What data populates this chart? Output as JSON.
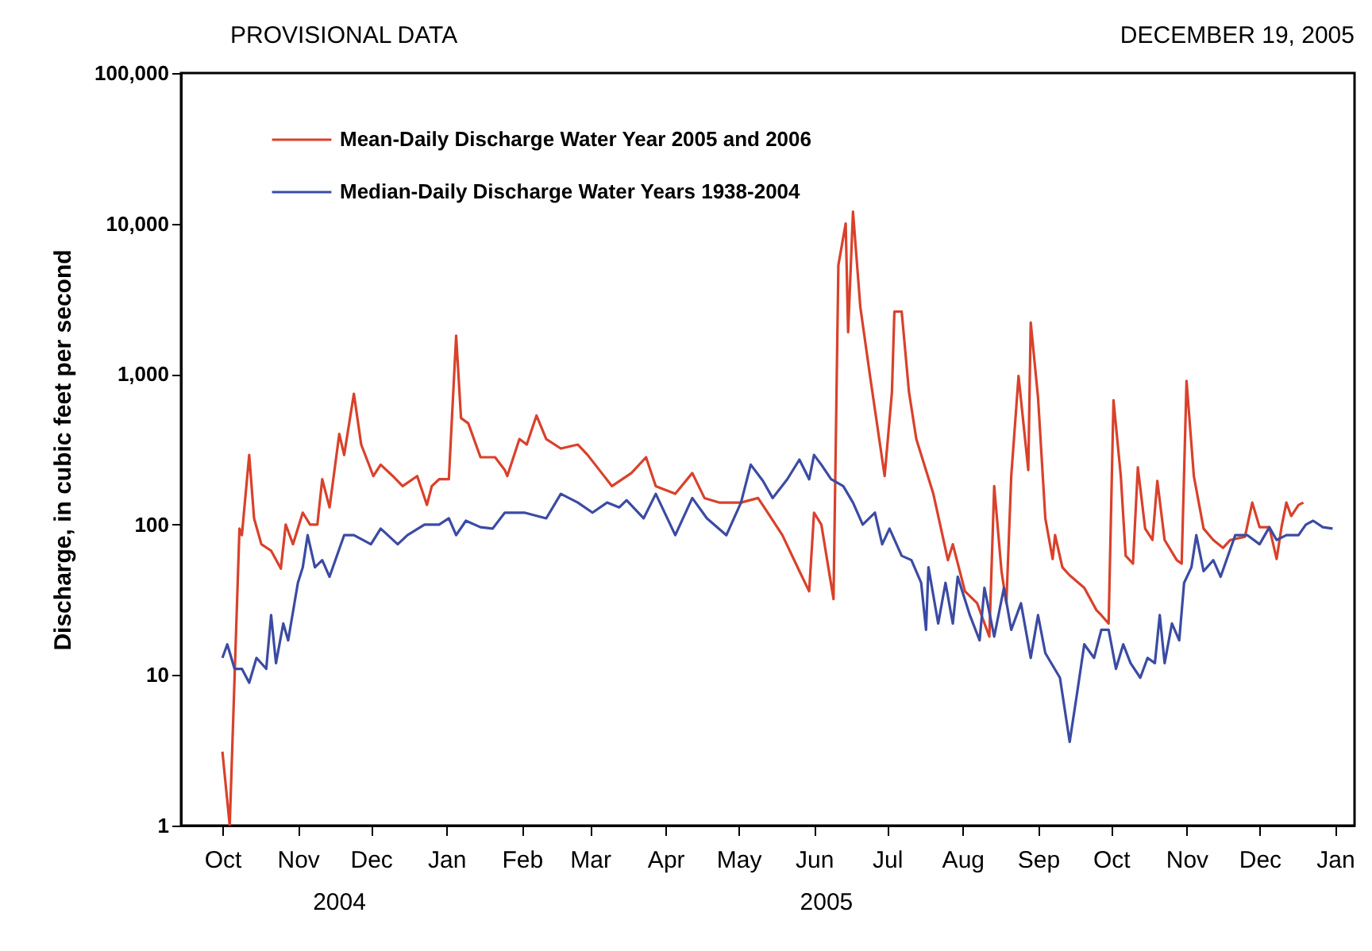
{
  "chart_data": {
    "type": "line",
    "title": "PROVISIONAL DATA",
    "ylabel": "Discharge, in cubic feet per second",
    "annotations": [
      "DECEMBER 19, 2005",
      "2004",
      "2005"
    ],
    "log": "y",
    "grid": false,
    "legend": "top left",
    "line_style": "solid",
    "marker": "none",
    "xlim": [
      "2004-09-14",
      "2006-01-09"
    ],
    "xticks": [
      {
        "value": "2004-10-01",
        "label": "Oct"
      },
      {
        "value": "2004-11-01",
        "label": "Nov"
      },
      {
        "value": "2004-12-01",
        "label": "Dec"
      },
      {
        "value": "2005-01-01",
        "label": "Jan"
      },
      {
        "value": "2005-02-01",
        "label": "Feb"
      },
      {
        "value": "2005-03-01",
        "label": "Mar"
      },
      {
        "value": "2005-04-01",
        "label": "Apr"
      },
      {
        "value": "2005-05-01",
        "label": "May"
      },
      {
        "value": "2005-06-01",
        "label": "Jun"
      },
      {
        "value": "2005-07-01",
        "label": "Jul"
      },
      {
        "value": "2005-08-01",
        "label": "Aug"
      },
      {
        "value": "2005-09-01",
        "label": "Sep"
      },
      {
        "value": "2005-10-01",
        "label": "Oct"
      },
      {
        "value": "2005-11-01",
        "label": "Nov"
      },
      {
        "value": "2005-12-01",
        "label": "Dec"
      },
      {
        "value": "2006-01-01",
        "label": "Jan"
      }
    ],
    "ylim": [
      1,
      100000
    ],
    "yticks": [
      1,
      10,
      100,
      {
        "value": 1000,
        "label": "1,000"
      },
      {
        "value": 10000,
        "label": "10,000"
      },
      {
        "value": 100000,
        "label": "100,000"
      }
    ],
    "series": [
      {
        "name": "Mean-Daily Discharge Water Year 2005 and 2006",
        "color": "#d9412b",
        "x": [
          "2004-10-01",
          "2004-10-04",
          "2004-10-08",
          "2004-10-09",
          "2004-10-12",
          "2004-10-14",
          "2004-10-17",
          "2004-10-21",
          "2004-10-25",
          "2004-10-27",
          "2004-10-30",
          "2004-11-03",
          "2004-11-06",
          "2004-11-09",
          "2004-11-11",
          "2004-11-14",
          "2004-11-18",
          "2004-11-20",
          "2004-11-24",
          "2004-11-27",
          "2004-12-02",
          "2004-12-05",
          "2004-12-10",
          "2004-12-14",
          "2004-12-20",
          "2004-12-24",
          "2004-12-26",
          "2004-12-29",
          "2005-01-02",
          "2005-01-05",
          "2005-01-07",
          "2005-01-10",
          "2005-01-15",
          "2005-01-21",
          "2005-01-25",
          "2005-01-26",
          "2005-01-31",
          "2005-02-03",
          "2005-02-07",
          "2005-02-11",
          "2005-02-17",
          "2005-02-24",
          "2005-02-28",
          "2005-03-10",
          "2005-03-18",
          "2005-03-24",
          "2005-03-28",
          "2005-04-05",
          "2005-04-12",
          "2005-04-17",
          "2005-04-23",
          "2005-05-02",
          "2005-05-09",
          "2005-05-13",
          "2005-05-19",
          "2005-05-26",
          "2005-05-30",
          "2005-06-01",
          "2005-06-04",
          "2005-06-09",
          "2005-06-11",
          "2005-06-14",
          "2005-06-15",
          "2005-06-17",
          "2005-06-20",
          "2005-06-24",
          "2005-06-30",
          "2005-07-03",
          "2005-07-04",
          "2005-07-07",
          "2005-07-10",
          "2005-07-13",
          "2005-07-20",
          "2005-07-26",
          "2005-07-28",
          "2005-08-02",
          "2005-08-07",
          "2005-08-12",
          "2005-08-14",
          "2005-08-17",
          "2005-08-19",
          "2005-08-21",
          "2005-08-24",
          "2005-08-28",
          "2005-08-29",
          "2005-09-01",
          "2005-09-04",
          "2005-09-07",
          "2005-09-08",
          "2005-09-11",
          "2005-09-14",
          "2005-09-20",
          "2005-09-25",
          "2005-09-27",
          "2005-09-30",
          "2005-10-02",
          "2005-10-05",
          "2005-10-07",
          "2005-10-10",
          "2005-10-12",
          "2005-10-15",
          "2005-10-18",
          "2005-10-20",
          "2005-10-23",
          "2005-10-28",
          "2005-10-30",
          "2005-11-01",
          "2005-11-04",
          "2005-11-08",
          "2005-11-12",
          "2005-11-16",
          "2005-11-19",
          "2005-11-25",
          "2005-11-28",
          "2005-12-01",
          "2005-12-05",
          "2005-12-08",
          "2005-12-10",
          "2005-12-12",
          "2005-12-14",
          "2005-12-17",
          "2005-12-19"
        ],
        "values": [
          3.1,
          1,
          94,
          85,
          290,
          110,
          74,
          67,
          51,
          100,
          74,
          120,
          100,
          100,
          200,
          130,
          400,
          290,
          740,
          340,
          210,
          250,
          210,
          180,
          210,
          135,
          180,
          200,
          200,
          1800,
          510,
          470,
          280,
          280,
          230,
          210,
          370,
          340,
          530,
          370,
          320,
          340,
          290,
          180,
          220,
          280,
          180,
          160,
          220,
          150,
          140,
          140,
          150,
          120,
          85,
          49,
          36,
          120,
          100,
          32,
          5300,
          10000,
          1900,
          12000,
          2800,
          970,
          210,
          760,
          2600,
          2600,
          760,
          370,
          160,
          58,
          74,
          36,
          30,
          18,
          180,
          49,
          30,
          210,
          970,
          230,
          2200,
          700,
          110,
          59,
          85,
          52,
          46,
          38,
          27,
          25,
          22,
          670,
          210,
          62,
          55,
          240,
          94,
          79,
          195,
          79,
          58,
          55,
          900,
          210,
          94,
          79,
          70,
          79,
          83,
          140,
          96,
          96,
          59,
          96,
          140,
          114,
          135,
          140
        ]
      },
      {
        "name": "Median-Daily Discharge Water Years 1938-2004",
        "color": "#3b4ba3",
        "x": [
          "2004-10-01",
          "2004-10-03",
          "2004-10-06",
          "2004-10-09",
          "2004-10-12",
          "2004-10-15",
          "2004-10-19",
          "2004-10-21",
          "2004-10-23",
          "2004-10-26",
          "2004-10-28",
          "2004-11-01",
          "2004-11-03",
          "2004-11-05",
          "2004-11-08",
          "2004-11-11",
          "2004-11-14",
          "2004-11-17",
          "2004-11-20",
          "2004-11-24",
          "2004-12-01",
          "2004-12-05",
          "2004-12-12",
          "2004-12-16",
          "2004-12-23",
          "2004-12-29",
          "2005-01-02",
          "2005-01-05",
          "2005-01-09",
          "2005-01-15",
          "2005-01-20",
          "2005-01-25",
          "2005-02-02",
          "2005-02-11",
          "2005-02-17",
          "2005-02-24",
          "2005-03-02",
          "2005-03-08",
          "2005-03-13",
          "2005-03-16",
          "2005-03-23",
          "2005-03-28",
          "2005-04-05",
          "2005-04-12",
          "2005-04-18",
          "2005-04-26",
          "2005-05-02",
          "2005-05-06",
          "2005-05-11",
          "2005-05-15",
          "2005-05-21",
          "2005-05-26",
          "2005-05-30",
          "2005-06-01",
          "2005-06-04",
          "2005-06-08",
          "2005-06-13",
          "2005-06-17",
          "2005-06-21",
          "2005-06-26",
          "2005-06-29",
          "2005-07-02",
          "2005-07-07",
          "2005-07-11",
          "2005-07-15",
          "2005-07-17",
          "2005-07-18",
          "2005-07-22",
          "2005-07-25",
          "2005-07-28",
          "2005-07-30",
          "2005-08-04",
          "2005-08-08",
          "2005-08-10",
          "2005-08-14",
          "2005-08-18",
          "2005-08-21",
          "2005-08-25",
          "2005-08-29",
          "2005-09-01",
          "2005-09-04",
          "2005-09-10",
          "2005-09-14",
          "2005-09-17",
          "2005-09-20",
          "2005-09-24",
          "2005-09-27",
          "2005-09-30",
          "2005-10-03",
          "2005-10-06",
          "2005-10-09",
          "2005-10-13",
          "2005-10-16",
          "2005-10-19",
          "2005-10-21",
          "2005-10-23",
          "2005-10-26",
          "2005-10-29",
          "2005-10-31",
          "2005-11-03",
          "2005-11-05",
          "2005-11-08",
          "2005-11-12",
          "2005-11-15",
          "2005-11-18",
          "2005-11-21",
          "2005-11-26",
          "2005-12-01",
          "2005-12-05",
          "2005-12-08",
          "2005-12-12",
          "2005-12-17",
          "2005-12-20",
          "2005-12-23",
          "2005-12-27",
          "2005-12-31"
        ],
        "values": [
          13,
          16,
          11,
          11,
          8.9,
          13,
          11,
          25,
          12,
          22,
          17,
          41,
          52,
          85,
          52,
          58,
          45,
          62,
          85,
          85,
          74,
          94,
          74,
          85,
          100,
          100,
          110,
          85,
          106,
          96,
          94,
          120,
          120,
          110,
          160,
          140,
          120,
          140,
          130,
          145,
          110,
          160,
          85,
          150,
          110,
          85,
          140,
          250,
          195,
          150,
          200,
          270,
          200,
          290,
          250,
          200,
          180,
          140,
          100,
          120,
          74,
          94,
          62,
          58,
          41,
          20,
          52,
          22,
          41,
          22,
          45,
          25,
          17,
          38,
          18,
          38,
          20,
          30,
          13,
          25,
          14,
          9.6,
          3.6,
          7.5,
          16,
          13,
          20,
          20,
          11,
          16,
          12,
          9.6,
          13,
          12,
          25,
          12,
          22,
          17,
          41,
          52,
          85,
          49,
          58,
          45,
          62,
          85,
          85,
          74,
          96,
          79,
          85,
          85,
          100,
          106,
          96,
          94
        ]
      }
    ]
  }
}
